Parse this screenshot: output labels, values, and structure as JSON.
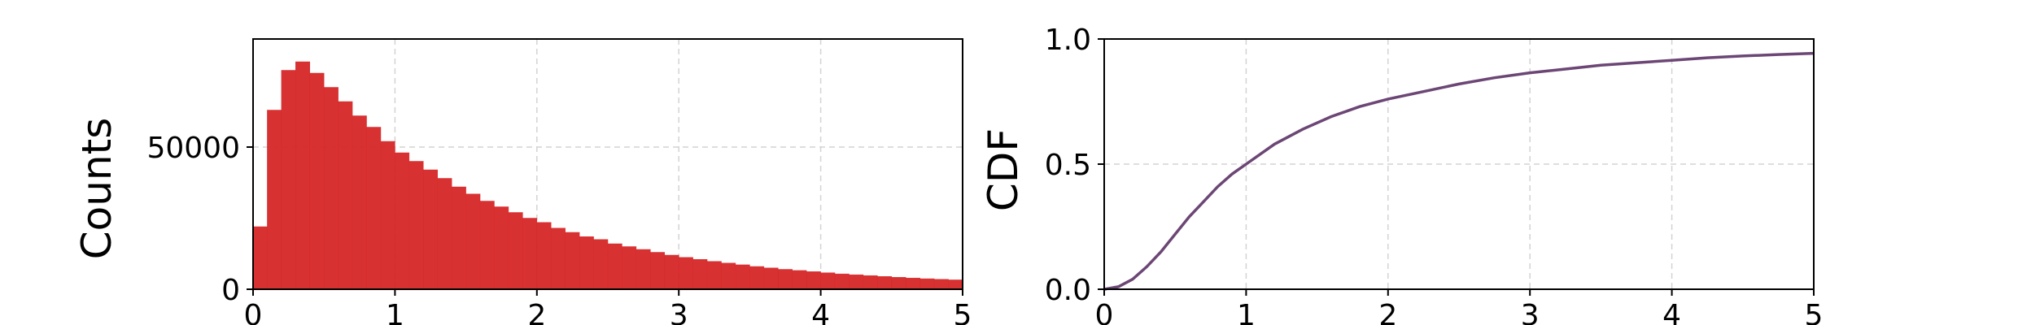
{
  "chart_data": [
    {
      "type": "bar",
      "title": "",
      "xlabel": "",
      "ylabel": "Counts",
      "xlim": [
        0,
        5
      ],
      "ylim": [
        0,
        88000
      ],
      "grid": true,
      "x_ticks": [
        "0",
        "1",
        "2",
        "3",
        "4",
        "5"
      ],
      "y_ticks": [
        "0",
        "50000"
      ],
      "color": "#d62728",
      "series": [
        {
          "x": [
            0.05,
            0.15,
            0.25,
            0.35,
            0.45,
            0.55,
            0.65,
            0.75,
            0.85,
            0.95,
            1.05,
            1.15,
            1.25,
            1.35,
            1.45,
            1.55,
            1.65,
            1.75,
            1.85,
            1.95,
            2.05,
            2.15,
            2.25,
            2.35,
            2.45,
            2.55,
            2.65,
            2.75,
            2.85,
            2.95,
            3.05,
            3.15,
            3.25,
            3.35,
            3.45,
            3.55,
            3.65,
            3.75,
            3.85,
            3.95,
            4.05,
            4.15,
            4.25,
            4.35,
            4.45,
            4.55,
            4.65,
            4.75,
            4.85,
            4.95
          ],
          "values": [
            22000,
            63000,
            77000,
            80000,
            76000,
            71000,
            66000,
            61000,
            57000,
            52000,
            48000,
            45000,
            42000,
            39000,
            36000,
            33500,
            31000,
            29000,
            27000,
            25000,
            23500,
            21500,
            20000,
            18500,
            17500,
            16000,
            15000,
            14000,
            13000,
            12000,
            11200,
            10500,
            9800,
            9200,
            8600,
            8000,
            7500,
            7000,
            6600,
            6200,
            5800,
            5400,
            5100,
            4800,
            4500,
            4200,
            3950,
            3700,
            3500,
            3300
          ]
        }
      ]
    },
    {
      "type": "line",
      "title": "",
      "xlabel": "",
      "ylabel": "CDF",
      "xlim": [
        0,
        5
      ],
      "ylim": [
        0,
        1
      ],
      "grid": true,
      "x_ticks": [
        "0",
        "1",
        "2",
        "3",
        "4",
        "5"
      ],
      "y_ticks": [
        "0.0",
        "0.5",
        "1.0"
      ],
      "color": "#6c4675",
      "series": [
        {
          "x": [
            0,
            0.1,
            0.2,
            0.3,
            0.4,
            0.5,
            0.6,
            0.7,
            0.8,
            0.9,
            1.0,
            1.2,
            1.4,
            1.6,
            1.8,
            2.0,
            2.25,
            2.5,
            2.75,
            3.0,
            3.25,
            3.5,
            3.75,
            4.0,
            4.25,
            4.5,
            4.75,
            5.0
          ],
          "values": [
            0.0,
            0.01,
            0.04,
            0.09,
            0.15,
            0.22,
            0.29,
            0.35,
            0.41,
            0.46,
            0.5,
            0.58,
            0.64,
            0.69,
            0.73,
            0.76,
            0.79,
            0.82,
            0.845,
            0.865,
            0.88,
            0.895,
            0.905,
            0.915,
            0.925,
            0.932,
            0.938,
            0.943
          ]
        }
      ]
    }
  ]
}
